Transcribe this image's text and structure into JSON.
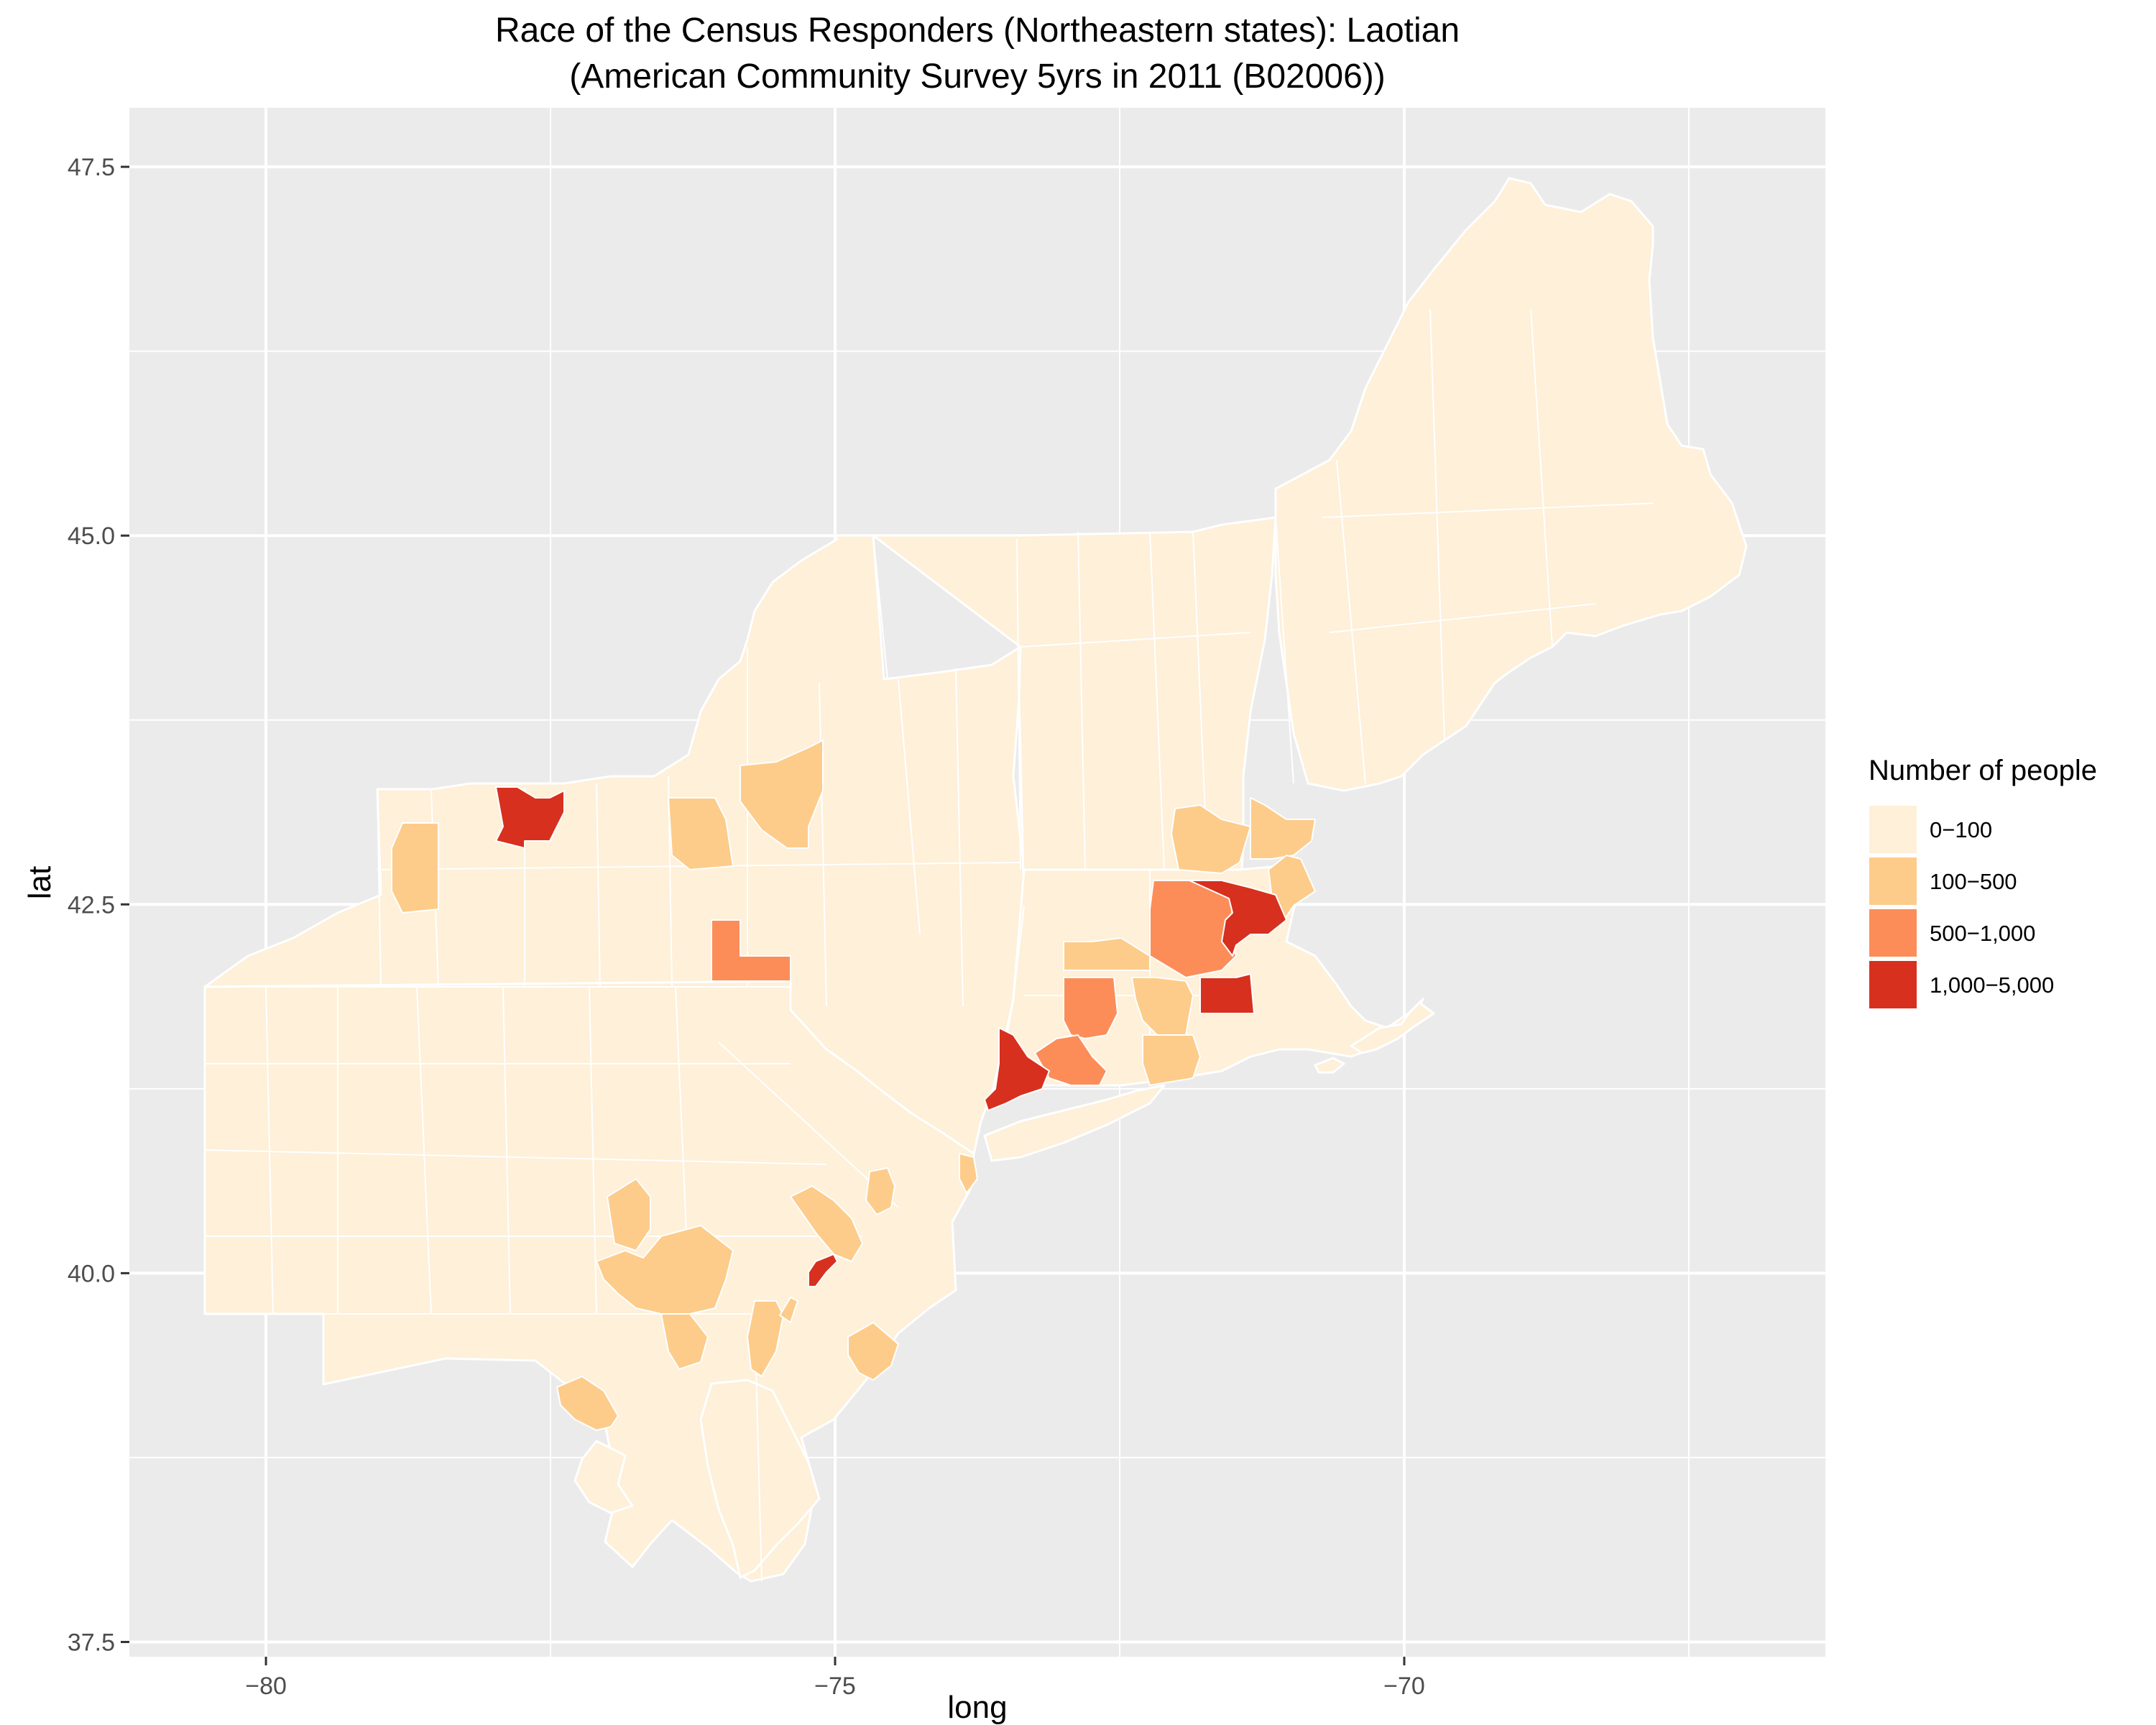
{
  "title": {
    "line1": "Race of the Census Responders (Northeastern states): Laotian",
    "line2": "(American Community Survey 5yrs in 2011 (B02006))"
  },
  "axes": {
    "x_label": "long",
    "y_label": "lat",
    "x_ticks": [
      "−80",
      "−75",
      "−70"
    ],
    "y_ticks": [
      "47.5",
      "45.0",
      "42.5",
      "40.0",
      "37.5"
    ]
  },
  "legend": {
    "title": "Number of people",
    "items": [
      {
        "label": "0−100",
        "color": "#fef0d9"
      },
      {
        "label": "100−500",
        "color": "#fdcc8a"
      },
      {
        "label": "500−1,000",
        "color": "#fc8d59"
      },
      {
        "label": "1,000−5,000",
        "color": "#d7301f"
      }
    ]
  },
  "chart_data": {
    "type": "choropleth",
    "x_range": [
      -81.2,
      -66.3
    ],
    "y_range": [
      37.4,
      47.9
    ],
    "x_ticks": [
      -80,
      -75,
      -70
    ],
    "y_ticks": [
      37.5,
      40.0,
      42.5,
      45.0,
      47.5
    ],
    "grid": true,
    "legend_position": "right",
    "background_color": "#ebebeb",
    "border_color": "#ffffff",
    "highlighted_regions": [
      {
        "category": "1,000−5,000",
        "approx_lon": -77.6,
        "approx_lat": 43.15
      },
      {
        "category": "1,000−5,000",
        "approx_lon": -71.4,
        "approx_lat": 42.45
      },
      {
        "category": "1,000−5,000",
        "approx_lon": -71.5,
        "approx_lat": 41.85
      },
      {
        "category": "1,000−5,000",
        "approx_lon": -73.3,
        "approx_lat": 41.3
      },
      {
        "category": "1,000−5,000",
        "approx_lon": -75.1,
        "approx_lat": 40.0
      },
      {
        "category": "500−1,000",
        "approx_lon": -75.9,
        "approx_lat": 42.2
      },
      {
        "category": "500−1,000",
        "approx_lon": -71.8,
        "approx_lat": 42.35
      },
      {
        "category": "500−1,000",
        "approx_lon": -72.6,
        "approx_lat": 41.9
      },
      {
        "category": "500−1,000",
        "approx_lon": -72.7,
        "approx_lat": 41.45
      },
      {
        "category": "100−500",
        "approx_lon": -78.9,
        "approx_lat": 42.8
      },
      {
        "category": "100−500",
        "approx_lon": -76.2,
        "approx_lat": 43.0
      },
      {
        "category": "100−500",
        "approx_lon": -75.5,
        "approx_lat": 43.3
      },
      {
        "category": "100−500",
        "approx_lon": -71.7,
        "approx_lat": 42.85
      },
      {
        "category": "100−500",
        "approx_lon": -71.1,
        "approx_lat": 42.9
      },
      {
        "category": "100−500",
        "approx_lon": -71.0,
        "approx_lat": 42.55
      },
      {
        "category": "100−500",
        "approx_lon": -72.3,
        "approx_lat": 42.1
      },
      {
        "category": "100−500",
        "approx_lon": -72.1,
        "approx_lat": 41.7
      },
      {
        "category": "100−500",
        "approx_lon": -72.0,
        "approx_lat": 41.35
      },
      {
        "category": "100−500",
        "approx_lon": -76.8,
        "approx_lat": 40.4
      },
      {
        "category": "100−500",
        "approx_lon": -76.3,
        "approx_lat": 40.0
      },
      {
        "category": "100−500",
        "approx_lon": -76.9,
        "approx_lat": 40.0
      },
      {
        "category": "100−500",
        "approx_lon": -76.2,
        "approx_lat": 39.5
      },
      {
        "category": "100−500",
        "approx_lon": -77.1,
        "approx_lat": 39.1
      },
      {
        "category": "100−500",
        "approx_lon": -75.5,
        "approx_lat": 40.4
      },
      {
        "category": "100−500",
        "approx_lon": -74.6,
        "approx_lat": 40.6
      },
      {
        "category": "100−500",
        "approx_lon": -74.1,
        "approx_lat": 40.7
      },
      {
        "category": "100−500",
        "approx_lon": -75.4,
        "approx_lat": 39.6
      },
      {
        "category": "100−500",
        "approx_lon": -74.8,
        "approx_lat": 39.5
      }
    ]
  }
}
